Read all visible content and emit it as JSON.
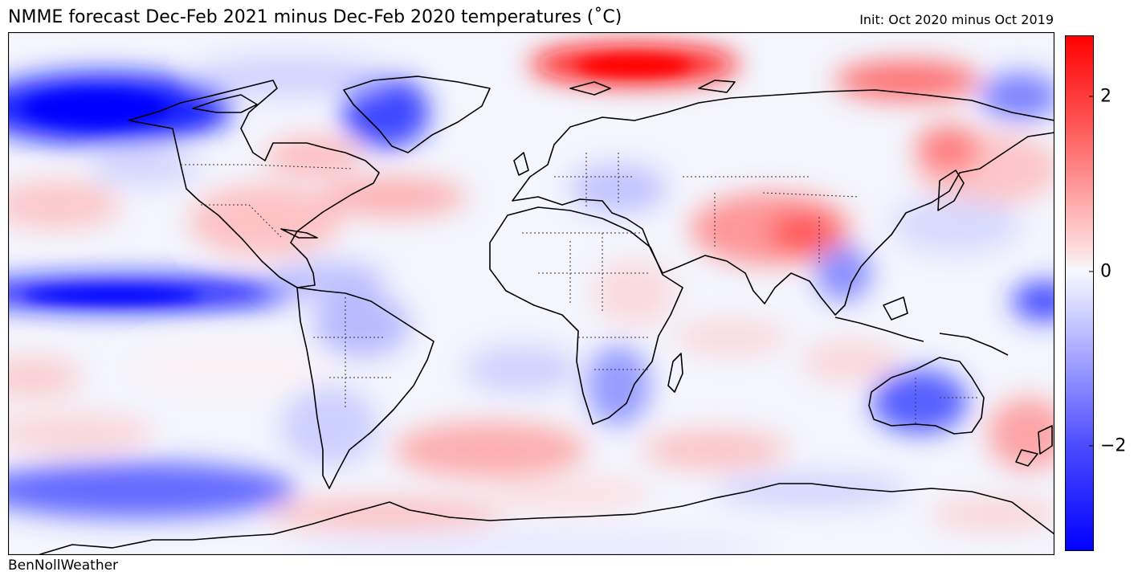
{
  "title": "NMME forecast Dec-Feb 2021 minus Dec-Feb 2020 temperatures (˚C)",
  "subtitle": "Init: Oct 2020 minus Oct 2019",
  "credit": "BenNollWeather",
  "colorbar": {
    "min": -3.2,
    "max": 2.7,
    "ticks": [
      {
        "value": 2,
        "label": "2"
      },
      {
        "value": 0,
        "label": "0"
      },
      {
        "value": -2,
        "label": "−2"
      }
    ],
    "colors": {
      "negative": "#0000ff",
      "neutral": "#f7f8fd",
      "positive": "#ff0000"
    }
  }
}
